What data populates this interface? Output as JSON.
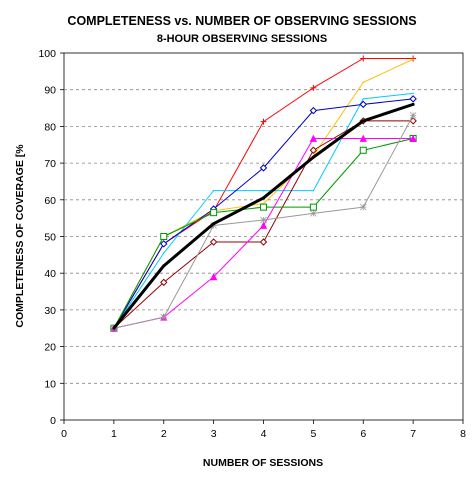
{
  "chart_data": {
    "type": "line",
    "title": "COMPLETENESS vs. NUMBER OF OBSERVING SESSIONS",
    "subtitle": "8-HOUR OBSERVING SESSIONS",
    "xlabel": "NUMBER OF SESSIONS",
    "ylabel": "COMPLETENESS OF COVERAGE [%",
    "xlim": [
      0,
      8
    ],
    "ylim": [
      0,
      100
    ],
    "x_ticks": [
      "0",
      "1",
      "2",
      "3",
      "4",
      "5",
      "6",
      "7",
      "8"
    ],
    "y_ticks": [
      "0",
      "10",
      "20",
      "30",
      "40",
      "50",
      "60",
      "70",
      "80",
      "90",
      "100"
    ],
    "grid": "horizontal dashed",
    "legend": "none",
    "x": [
      1,
      2,
      3,
      4,
      5,
      6,
      7
    ],
    "series": [
      {
        "color": "#ff0000",
        "marker": "plus",
        "values": [
          25,
          48,
          57,
          81.3,
          90.5,
          98.5,
          98.5
        ]
      },
      {
        "color": "#ffc000",
        "marker": "none",
        "values": [
          25,
          50,
          57,
          59,
          72,
          92,
          98.3
        ]
      },
      {
        "color": "#00ccff",
        "marker": "none",
        "values": [
          25,
          45.5,
          62.5,
          62.5,
          62.5,
          87.5,
          89
        ]
      },
      {
        "color": "#0000cc",
        "marker": "diamond-open",
        "values": [
          25,
          48,
          57.5,
          68.7,
          84.3,
          86,
          87.5
        ]
      },
      {
        "color": "#990000",
        "marker": "diamond-open",
        "values": [
          25,
          37.5,
          48.5,
          48.5,
          73.5,
          81.5,
          81.5
        ]
      },
      {
        "color": "#009900",
        "marker": "square-open",
        "values": [
          25,
          50,
          56.5,
          58,
          58,
          73.5,
          76.7
        ]
      },
      {
        "color": "#ff00ff",
        "marker": "triangle",
        "values": [
          25,
          28,
          39,
          53,
          76.7,
          76.7,
          76.7
        ]
      },
      {
        "color": "#999999",
        "marker": "star",
        "values": [
          25,
          28,
          53,
          54.5,
          56.3,
          58,
          83
        ]
      },
      {
        "color": "#000000",
        "marker": "none",
        "bold": true,
        "values": [
          25,
          42,
          53.5,
          60.5,
          71.6,
          81.5,
          86
        ]
      }
    ]
  }
}
